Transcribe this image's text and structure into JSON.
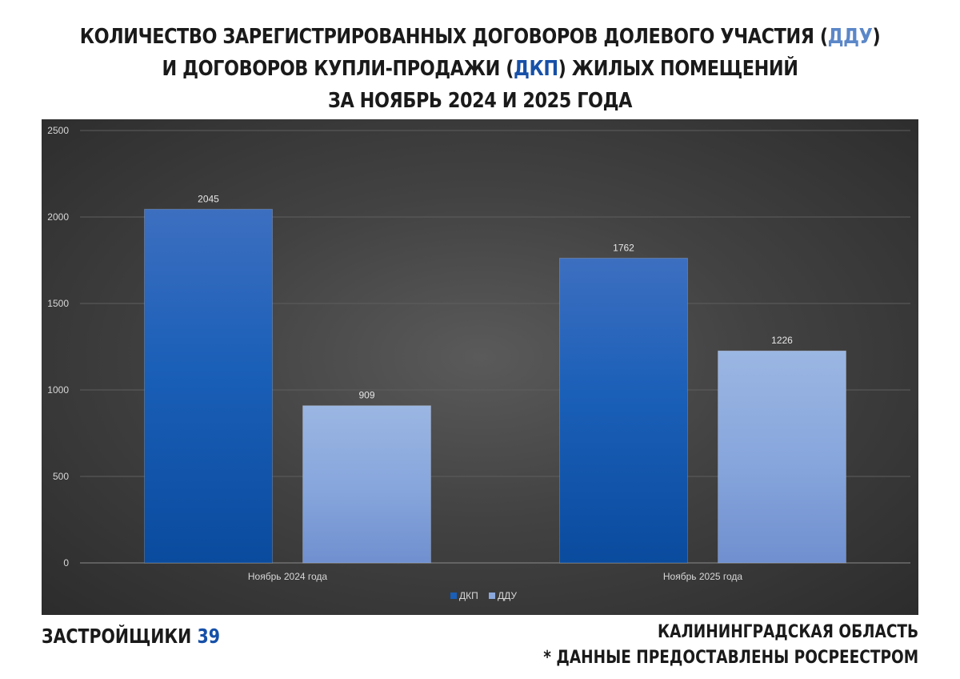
{
  "header": {
    "line1_pre": "КОЛИЧЕСТВО ЗАРЕГИСТРИРОВАННЫХ ДОГОВОРОВ ДОЛЕВОГО УЧАСТИЯ (",
    "line1_hl": "ДДУ",
    "line1_post": ")",
    "line2_pre": "И ДОГОВОРОВ КУПЛИ-ПРОДАЖИ (",
    "line2_hl": "ДКП",
    "line2_post": ") ЖИЛЫХ ПОМЕЩЕНИЙ",
    "line3": "ЗА НОЯБРЬ 2024 И 2025 ГОДА"
  },
  "footer": {
    "brand_text": "ЗАСТРОЙЩИКИ ",
    "brand_number": "39",
    "region": "КАЛИНИНГРАДСКАЯ ОБЛАСТЬ",
    "source_note": "* ДАННЫЕ ПРЕДОСТАВЛЕНЫ РОСРЕЕСТРОМ"
  },
  "colors": {
    "dkp": "#1a5fb8",
    "ddu": "#8aa8dc",
    "dkp_highlight": "#1650a8",
    "ddu_highlight": "#5b87c8"
  },
  "chart_data": {
    "type": "bar",
    "categories": [
      "Ноябрь 2024 года",
      "Ноябрь 2025 года"
    ],
    "series": [
      {
        "name": "ДКП",
        "values": [
          2045,
          1762
        ]
      },
      {
        "name": "ДДУ",
        "values": [
          909,
          1226
        ]
      }
    ],
    "ylim": [
      0,
      2500
    ],
    "yticks": [
      0,
      500,
      1000,
      1500,
      2000,
      2500
    ],
    "grid": true,
    "legend": "bottom",
    "data_labels": true
  }
}
